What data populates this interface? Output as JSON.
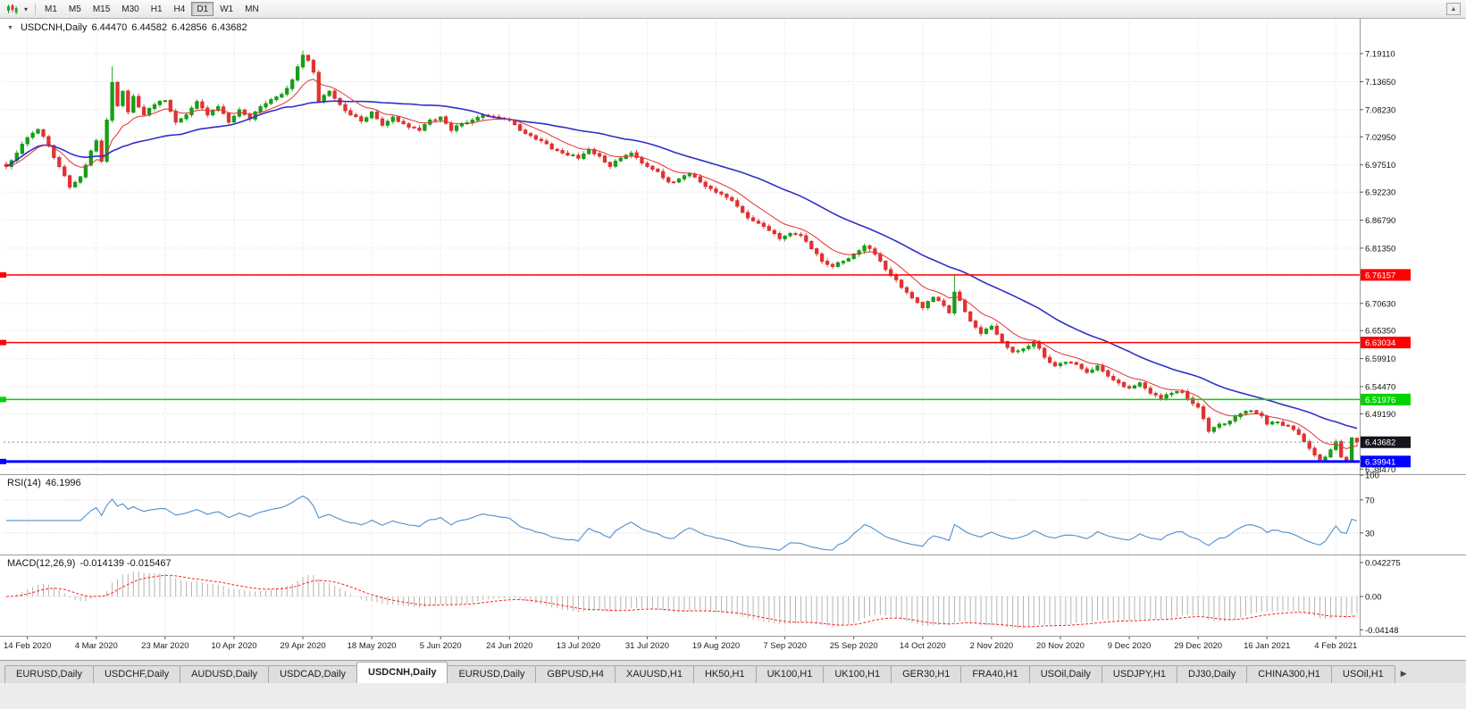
{
  "toolbar": {
    "timeframes": [
      "M1",
      "M5",
      "M15",
      "M30",
      "H1",
      "H4",
      "D1",
      "W1",
      "MN"
    ],
    "active_timeframe": "D1",
    "dropdown_icon": "▾",
    "scroll_up_icon": "▲"
  },
  "chart_header": {
    "collapse_icon": "▼",
    "symbol": "USDCNH,Daily",
    "open": "6.44470",
    "high": "6.44582",
    "low": "6.42856",
    "close": "6.43682"
  },
  "rsi_panel": {
    "label": "RSI(14)",
    "value": "46.1996"
  },
  "macd_panel": {
    "label": "MACD(12,26,9)",
    "value": "-0.014139 -0.015467"
  },
  "tabbar": {
    "tabs": [
      "EURUSD,Daily",
      "USDCHF,Daily",
      "AUDUSD,Daily",
      "USDCAD,Daily",
      "USDCNH,Daily",
      "EURUSD,Daily",
      "GBPUSD,H4",
      "XAUUSD,H1",
      "HK50,H1",
      "UK100,H1",
      "UK100,H1",
      "GER30,H1",
      "FRA40,H1",
      "USOil,Daily",
      "USDJPY,H1",
      "DJ30,Daily",
      "CHINA300,H1",
      "USOil,H1"
    ],
    "active_index": 4,
    "right_arrow": "▶"
  },
  "chart_data": {
    "type": "candlestick",
    "symbol": "USDCNH",
    "timeframe": "Daily",
    "current_bar": {
      "open": 6.4447,
      "high": 6.44582,
      "low": 6.42856,
      "close": 6.43682
    },
    "candle_count": 256,
    "seed": 7,
    "noise_amplitude": 0.006,
    "wick_base": 0.0015,
    "wick_rand": 0.0042,
    "colors": {
      "up": "#169e16",
      "down": "#e03232",
      "ma_fast": "#e03232",
      "ma_slow": "#3030c8",
      "rsi": "#4f8fce",
      "macd_hist": "#b4b4b4",
      "macd_signal": "#ff2020",
      "grid": "#dedede"
    },
    "price_axis": {
      "visible_max": 7.257,
      "visible_min": 6.376,
      "ticks": [
        {
          "label": "7.19110",
          "v": 7.1911
        },
        {
          "label": "7.13650",
          "v": 7.1365
        },
        {
          "label": "7.08230",
          "v": 7.0823
        },
        {
          "label": "7.02950",
          "v": 7.0295
        },
        {
          "label": "6.97510",
          "v": 6.9751
        },
        {
          "label": "6.92230",
          "v": 6.9223
        },
        {
          "label": "6.86790",
          "v": 6.8679
        },
        {
          "label": "6.81350",
          "v": 6.8135
        },
        {
          "label": "6.70630",
          "v": 6.7063
        },
        {
          "label": "6.65350",
          "v": 6.6535
        },
        {
          "label": "6.59910",
          "v": 6.5991
        },
        {
          "label": "6.54470",
          "v": 6.5447
        },
        {
          "label": "6.49190",
          "v": 6.4919
        },
        {
          "label": "6.38470",
          "v": 6.3847
        }
      ],
      "hidden_gridlines": [
        6.7591,
        6.4375
      ]
    },
    "hlines": [
      {
        "label": "6.76157",
        "v": 6.76157,
        "color": "#ff0000",
        "lw": 1.5
      },
      {
        "label": "6.63034",
        "v": 6.63034,
        "color": "#ff0000",
        "lw": 1.5
      },
      {
        "label": "6.51976",
        "v": 6.51976,
        "color": "#00d400",
        "lw": 1.5
      },
      {
        "label": "6.39941",
        "v": 6.39941,
        "color": "#0000ff",
        "lw": 3
      }
    ],
    "current_price_marker": {
      "label": "6.43682",
      "v": 6.43682,
      "bg": "#14151d"
    },
    "x_axis": {
      "first_candle_index": 4,
      "candles_per_tick": 13,
      "labels": [
        "14 Feb 2020",
        "4 Mar 2020",
        "23 Mar 2020",
        "10 Apr 2020",
        "29 Apr 2020",
        "18 May 2020",
        "5 Jun 2020",
        "24 Jun 2020",
        "13 Jul 2020",
        "31 Jul 2020",
        "19 Aug 2020",
        "7 Sep 2020",
        "25 Sep 2020",
        "14 Oct 2020",
        "2 Nov 2020",
        "20 Nov 2020",
        "9 Dec 2020",
        "29 Dec 2020",
        "16 Jan 2021",
        "4 Feb 2021"
      ]
    },
    "close_keyframes": [
      [
        0,
        6.972
      ],
      [
        2,
        6.998
      ],
      [
        4,
        7.028
      ],
      [
        6,
        7.044
      ],
      [
        8,
        7.012
      ],
      [
        10,
        6.972
      ],
      [
        12,
        6.932
      ],
      [
        14,
        6.952
      ],
      [
        16,
        7.002
      ],
      [
        17,
        7.022
      ],
      [
        18,
        6.982
      ],
      [
        19,
        7.062
      ],
      [
        20,
        7.135
      ],
      [
        21,
        7.09
      ],
      [
        22,
        7.118
      ],
      [
        23,
        7.078
      ],
      [
        24,
        7.108
      ],
      [
        26,
        7.072
      ],
      [
        28,
        7.092
      ],
      [
        30,
        7.1
      ],
      [
        32,
        7.058
      ],
      [
        34,
        7.072
      ],
      [
        36,
        7.098
      ],
      [
        38,
        7.072
      ],
      [
        40,
        7.088
      ],
      [
        42,
        7.058
      ],
      [
        44,
        7.082
      ],
      [
        46,
        7.064
      ],
      [
        48,
        7.088
      ],
      [
        50,
        7.102
      ],
      [
        52,
        7.112
      ],
      [
        54,
        7.14
      ],
      [
        56,
        7.188
      ],
      [
        57,
        7.178
      ],
      [
        58,
        7.155
      ],
      [
        59,
        7.098
      ],
      [
        61,
        7.118
      ],
      [
        63,
        7.092
      ],
      [
        65,
        7.072
      ],
      [
        67,
        7.06
      ],
      [
        69,
        7.078
      ],
      [
        71,
        7.052
      ],
      [
        73,
        7.068
      ],
      [
        75,
        7.055
      ],
      [
        78,
        7.042
      ],
      [
        80,
        7.062
      ],
      [
        82,
        7.068
      ],
      [
        84,
        7.042
      ],
      [
        86,
        7.055
      ],
      [
        88,
        7.062
      ],
      [
        90,
        7.072
      ],
      [
        92,
        7.068
      ],
      [
        95,
        7.062
      ],
      [
        97,
        7.042
      ],
      [
        99,
        7.032
      ],
      [
        101,
        7.022
      ],
      [
        103,
        7.006
      ],
      [
        105,
        6.998
      ],
      [
        108,
        6.988
      ],
      [
        110,
        7.005
      ],
      [
        112,
        6.992
      ],
      [
        114,
        6.972
      ],
      [
        116,
        6.988
      ],
      [
        118,
        6.998
      ],
      [
        121,
        6.972
      ],
      [
        123,
        6.962
      ],
      [
        125,
        6.942
      ],
      [
        127,
        6.948
      ],
      [
        129,
        6.958
      ],
      [
        131,
        6.942
      ],
      [
        134,
        6.922
      ],
      [
        136,
        6.912
      ],
      [
        138,
        6.895
      ],
      [
        140,
        6.872
      ],
      [
        142,
        6.862
      ],
      [
        144,
        6.848
      ],
      [
        146,
        6.832
      ],
      [
        148,
        6.842
      ],
      [
        150,
        6.838
      ],
      [
        152,
        6.812
      ],
      [
        154,
        6.788
      ],
      [
        156,
        6.778
      ],
      [
        158,
        6.788
      ],
      [
        160,
        6.802
      ],
      [
        162,
        6.818
      ],
      [
        164,
        6.802
      ],
      [
        166,
        6.772
      ],
      [
        168,
        6.752
      ],
      [
        170,
        6.728
      ],
      [
        172,
        6.708
      ],
      [
        173,
        6.698
      ],
      [
        175,
        6.718
      ],
      [
        177,
        6.702
      ],
      [
        178,
        6.688
      ],
      [
        179,
        6.728
      ],
      [
        180,
        6.712
      ],
      [
        182,
        6.672
      ],
      [
        184,
        6.648
      ],
      [
        186,
        6.662
      ],
      [
        188,
        6.632
      ],
      [
        190,
        6.612
      ],
      [
        192,
        6.618
      ],
      [
        194,
        6.632
      ],
      [
        196,
        6.602
      ],
      [
        198,
        6.585
      ],
      [
        200,
        6.592
      ],
      [
        202,
        6.588
      ],
      [
        204,
        6.572
      ],
      [
        206,
        6.585
      ],
      [
        208,
        6.565
      ],
      [
        210,
        6.552
      ],
      [
        212,
        6.542
      ],
      [
        214,
        6.552
      ],
      [
        216,
        6.532
      ],
      [
        218,
        6.522
      ],
      [
        220,
        6.532
      ],
      [
        222,
        6.535
      ],
      [
        224,
        6.512
      ],
      [
        225,
        6.505
      ],
      [
        227,
        6.458
      ],
      [
        229,
        6.472
      ],
      [
        231,
        6.478
      ],
      [
        233,
        6.492
      ],
      [
        235,
        6.498
      ],
      [
        237,
        6.488
      ],
      [
        238,
        6.472
      ],
      [
        240,
        6.476
      ],
      [
        242,
        6.468
      ],
      [
        244,
        6.452
      ],
      [
        246,
        6.425
      ],
      [
        247,
        6.412
      ],
      [
        248,
        6.402
      ],
      [
        249,
        6.408
      ],
      [
        250,
        6.422
      ],
      [
        251,
        6.438
      ],
      [
        252,
        6.408
      ],
      [
        253,
        6.402
      ],
      [
        254,
        6.445
      ],
      [
        255,
        6.437
      ]
    ],
    "wick_overrides": [
      {
        "i": 20,
        "h": 7.1665
      },
      {
        "i": 56,
        "h": 7.1968
      },
      {
        "i": 179,
        "h": 6.7618
      },
      {
        "i": 248,
        "l": 6.3989
      },
      {
        "i": 253,
        "l": 6.3986
      }
    ],
    "moving_averages": [
      {
        "kind": "ema",
        "period": 10,
        "color_key": "ma_fast"
      },
      {
        "kind": "sma",
        "period": 34,
        "color_key": "ma_slow"
      }
    ],
    "rsi": {
      "period": 14,
      "levels": [
        70,
        30
      ],
      "axis": [
        {
          "label": "100",
          "v": 100
        },
        {
          "label": "70",
          "v": 70
        },
        {
          "label": "30",
          "v": 30
        }
      ]
    },
    "macd": {
      "fast": 12,
      "slow": 26,
      "signal": 9,
      "axis": [
        {
          "label": "0.042275",
          "v": 0.042275
        },
        {
          "label": "0.00",
          "v": 0
        },
        {
          "label": "-0.04148",
          "v": -0.04148
        }
      ]
    }
  }
}
